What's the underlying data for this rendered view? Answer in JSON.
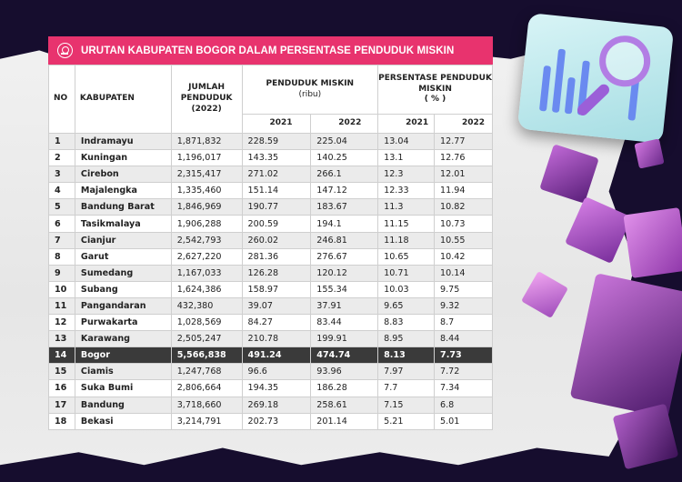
{
  "title": "URUTAN KABUPATEN BOGOR DALAM PERSENTASE PENDUDUK MISKIN",
  "headers": {
    "no": "NO",
    "kabupaten": "KABUPATEN",
    "jumlah": "JUMLAH PENDUDUK (2022)",
    "miskin": "PENDUDUK MISKIN",
    "miskin_unit": "(ribu)",
    "persen": "PERSENTASE PENDUDUK MISKIN",
    "persen_unit": "( % )",
    "year1": "2021",
    "year2": "2022"
  },
  "highlight_color": "#3a3a3a",
  "accent_color": "#e8336e",
  "rows": [
    {
      "no": "1",
      "kab": "Indramayu",
      "jml": "1,871,832",
      "m21": "228.59",
      "m22": "225.04",
      "p21": "13.04",
      "p22": "12.77"
    },
    {
      "no": "2",
      "kab": "Kuningan",
      "jml": "1,196,017",
      "m21": "143.35",
      "m22": "140.25",
      "p21": "13.1",
      "p22": "12.76"
    },
    {
      "no": "3",
      "kab": "Cirebon",
      "jml": "2,315,417",
      "m21": "271.02",
      "m22": "266.1",
      "p21": "12.3",
      "p22": "12.01"
    },
    {
      "no": "4",
      "kab": "Majalengka",
      "jml": "1,335,460",
      "m21": "151.14",
      "m22": "147.12",
      "p21": "12.33",
      "p22": "11.94"
    },
    {
      "no": "5",
      "kab": "Bandung Barat",
      "jml": "1,846,969",
      "m21": "190.77",
      "m22": "183.67",
      "p21": "11.3",
      "p22": "10.82"
    },
    {
      "no": "6",
      "kab": "Tasikmalaya",
      "jml": "1,906,288",
      "m21": "200.59",
      "m22": "194.1",
      "p21": "11.15",
      "p22": "10.73"
    },
    {
      "no": "7",
      "kab": "Cianjur",
      "jml": "2,542,793",
      "m21": "260.02",
      "m22": "246.81",
      "p21": "11.18",
      "p22": "10.55"
    },
    {
      "no": "8",
      "kab": "Garut",
      "jml": "2,627,220",
      "m21": "281.36",
      "m22": "276.67",
      "p21": "10.65",
      "p22": "10.42"
    },
    {
      "no": "9",
      "kab": "Sumedang",
      "jml": "1,167,033",
      "m21": "126.28",
      "m22": "120.12",
      "p21": "10.71",
      "p22": "10.14"
    },
    {
      "no": "10",
      "kab": "Subang",
      "jml": "1,624,386",
      "m21": "158.97",
      "m22": "155.34",
      "p21": "10.03",
      "p22": "9.75"
    },
    {
      "no": "11",
      "kab": "Pangandaran",
      "jml": "432,380",
      "m21": "39.07",
      "m22": "37.91",
      "p21": "9.65",
      "p22": "9.32"
    },
    {
      "no": "12",
      "kab": "Purwakarta",
      "jml": "1,028,569",
      "m21": "84.27",
      "m22": "83.44",
      "p21": "8.83",
      "p22": "8.7"
    },
    {
      "no": "13",
      "kab": "Karawang",
      "jml": "2,505,247",
      "m21": "210.78",
      "m22": "199.91",
      "p21": "8.95",
      "p22": "8.44"
    },
    {
      "no": "14",
      "kab": "Bogor",
      "jml": "5,566,838",
      "m21": "491.24",
      "m22": "474.74",
      "p21": "8.13",
      "p22": "7.73",
      "highlight": true
    },
    {
      "no": "15",
      "kab": "Ciamis",
      "jml": "1,247,768",
      "m21": "96.6",
      "m22": "93.96",
      "p21": "7.97",
      "p22": "7.72"
    },
    {
      "no": "16",
      "kab": "Suka Bumi",
      "jml": "2,806,664",
      "m21": "194.35",
      "m22": "186.28",
      "p21": "7.7",
      "p22": "7.34"
    },
    {
      "no": "17",
      "kab": "Bandung",
      "jml": "3,718,660",
      "m21": "269.18",
      "m22": "258.61",
      "p21": "7.15",
      "p22": "6.8"
    },
    {
      "no": "18",
      "kab": "Bekasi",
      "jml": "3,214,791",
      "m21": "202.73",
      "m22": "201.14",
      "p21": "5.21",
      "p22": "5.01"
    }
  ]
}
